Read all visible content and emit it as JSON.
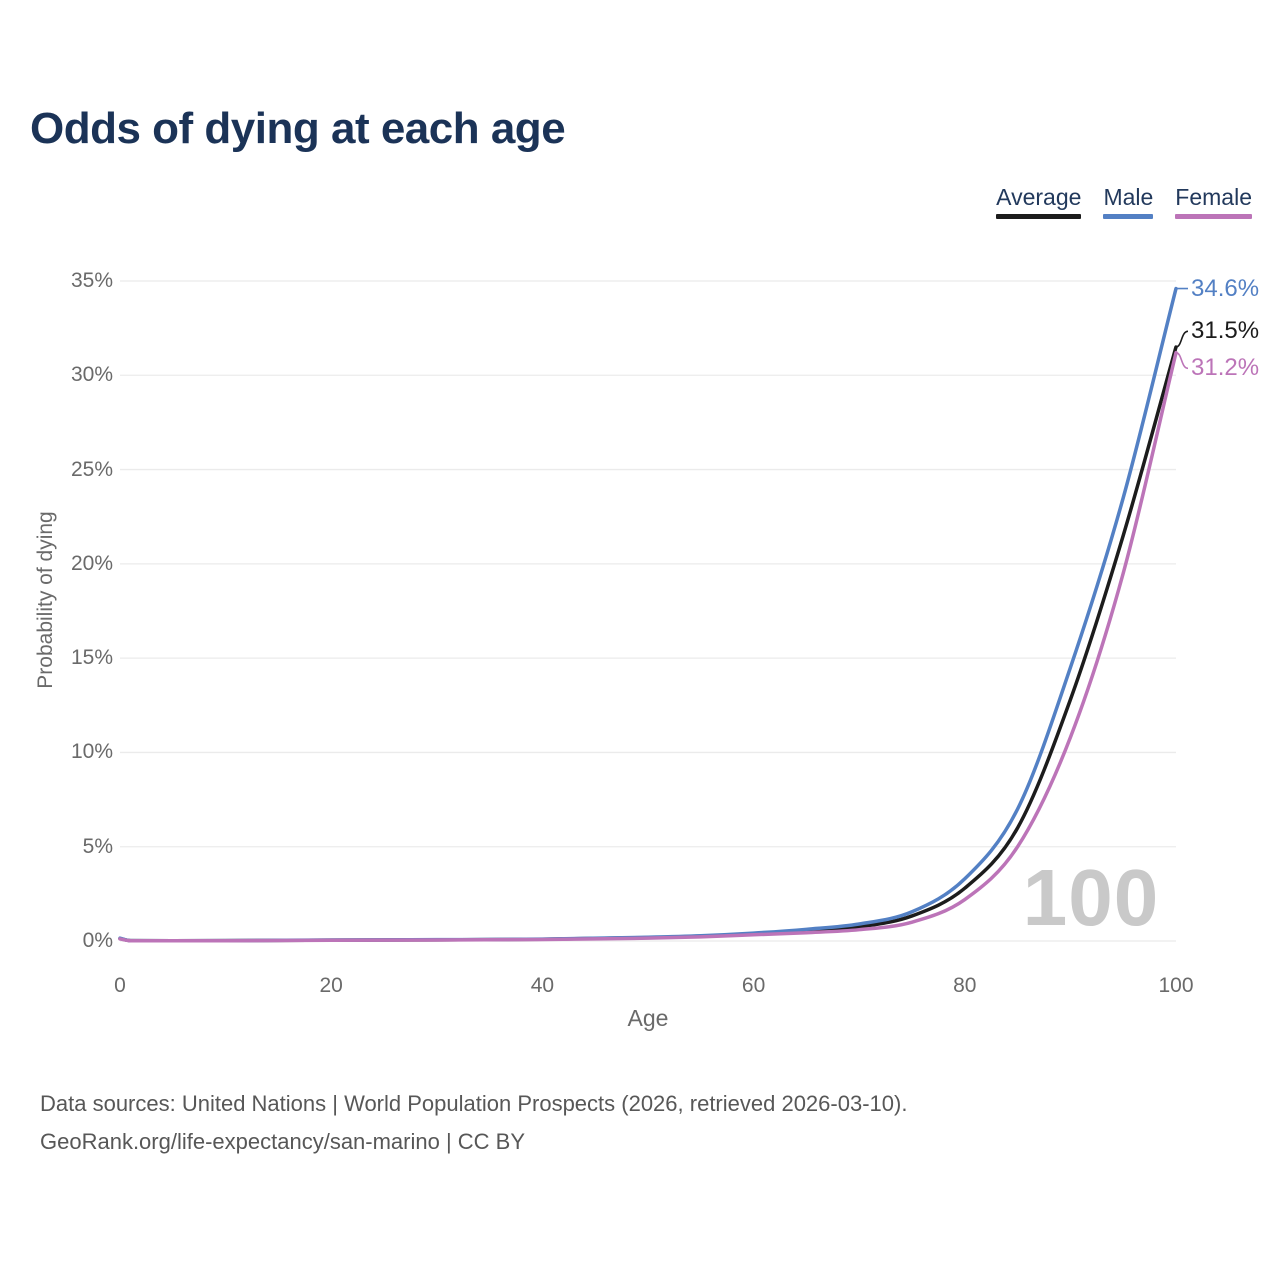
{
  "header": {
    "title": "Odds of dying at each age"
  },
  "legend": {
    "items": [
      {
        "label": "Average",
        "color": "#1c1c1c"
      },
      {
        "label": "Male",
        "color": "#5380c4"
      },
      {
        "label": "Female",
        "color": "#bc74b8"
      }
    ]
  },
  "chart_data": {
    "type": "line",
    "title": "Odds of dying at each age",
    "xlabel": "Age",
    "ylabel": "Probability of dying",
    "xlim": [
      0,
      100
    ],
    "ylim": [
      0,
      35
    ],
    "x_ticks": [
      0,
      20,
      40,
      60,
      80,
      100
    ],
    "y_ticks": [
      0,
      5,
      10,
      15,
      20,
      25,
      30,
      35
    ],
    "y_tick_suffix": "%",
    "grid": "horizontal",
    "legend_position": "top-right",
    "watermark": "100",
    "x": [
      0,
      1,
      5,
      10,
      20,
      30,
      40,
      50,
      55,
      60,
      65,
      70,
      75,
      80,
      85,
      90,
      95,
      100
    ],
    "series": [
      {
        "name": "Average",
        "color": "#1c1c1c",
        "end_label": "31.5%",
        "values": [
          0.13,
          0.018,
          0.013,
          0.018,
          0.045,
          0.06,
          0.09,
          0.18,
          0.25,
          0.38,
          0.53,
          0.75,
          1.33,
          2.8,
          6.0,
          12.8,
          21.5,
          31.5
        ]
      },
      {
        "name": "Male",
        "color": "#5380c4",
        "end_label": "34.6%",
        "values": [
          0.15,
          0.02,
          0.015,
          0.02,
          0.05,
          0.07,
          0.1,
          0.2,
          0.28,
          0.42,
          0.62,
          0.9,
          1.55,
          3.3,
          7.0,
          14.5,
          23.5,
          34.6
        ]
      },
      {
        "name": "Female",
        "color": "#bc74b8",
        "end_label": "31.2%",
        "values": [
          0.11,
          0.015,
          0.012,
          0.015,
          0.04,
          0.05,
          0.08,
          0.15,
          0.22,
          0.33,
          0.44,
          0.6,
          1.0,
          2.2,
          5.0,
          10.8,
          19.5,
          31.2
        ]
      }
    ]
  },
  "footer": {
    "line1": "Data sources: United Nations | World Population Prospects (2026, retrieved 2026-03-10).",
    "line2": "GeoRank.org/life-expectancy/san-marino | CC BY"
  }
}
